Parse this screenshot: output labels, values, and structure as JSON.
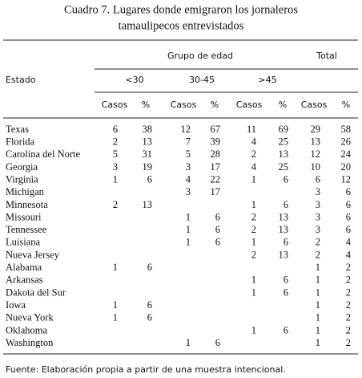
{
  "title": [
    "Cuadro 7. Lugares donde emigraron los jornaleros",
    "tamaulipecos entrevistados"
  ],
  "table": {
    "group_header": "Grupo de edad",
    "total_header": "Total",
    "row_header": "Estado",
    "age_groups": [
      "<30",
      "30-45",
      ">45"
    ],
    "sub_headers": [
      "Casos",
      "%",
      "Casos",
      "%",
      "Casos",
      "%",
      "Casos",
      "%"
    ],
    "rows": [
      [
        "Texas",
        6,
        38,
        12,
        67,
        11,
        69,
        29,
        58
      ],
      [
        "Florida",
        2,
        13,
        7,
        39,
        4,
        25,
        13,
        26
      ],
      [
        "Carolina del Norte",
        5,
        31,
        5,
        28,
        2,
        13,
        12,
        24
      ],
      [
        "Georgia",
        3,
        19,
        3,
        17,
        4,
        25,
        10,
        20
      ],
      [
        "Virginia",
        1,
        6,
        4,
        22,
        1,
        6,
        6,
        12
      ],
      [
        "Michigan",
        null,
        null,
        3,
        17,
        null,
        null,
        3,
        6
      ],
      [
        "Minnesota",
        2,
        13,
        null,
        null,
        1,
        6,
        3,
        6
      ],
      [
        "Missouri",
        null,
        null,
        1,
        6,
        2,
        13,
        3,
        6
      ],
      [
        "Tennessee",
        null,
        null,
        1,
        6,
        2,
        13,
        3,
        6
      ],
      [
        "Luisiana",
        null,
        null,
        1,
        6,
        1,
        6,
        2,
        4
      ],
      [
        "Nueva Jersey",
        null,
        null,
        null,
        null,
        2,
        13,
        2,
        4
      ],
      [
        "Alabama",
        1,
        6,
        null,
        null,
        null,
        null,
        1,
        2
      ],
      [
        "Arkansas",
        null,
        null,
        null,
        null,
        1,
        6,
        1,
        2
      ],
      [
        "Dakota del Sur",
        null,
        null,
        null,
        null,
        1,
        6,
        1,
        2
      ],
      [
        "Iowa",
        1,
        6,
        null,
        null,
        null,
        null,
        1,
        2
      ],
      [
        "Nueva York",
        1,
        6,
        null,
        null,
        null,
        null,
        1,
        2
      ],
      [
        "Oklahoma",
        null,
        null,
        null,
        null,
        1,
        6,
        1,
        2
      ],
      [
        "Washington",
        null,
        null,
        1,
        6,
        null,
        null,
        1,
        2
      ]
    ]
  },
  "footer": "Fuente: Elaboración propia a partir de una muestra intencional."
}
